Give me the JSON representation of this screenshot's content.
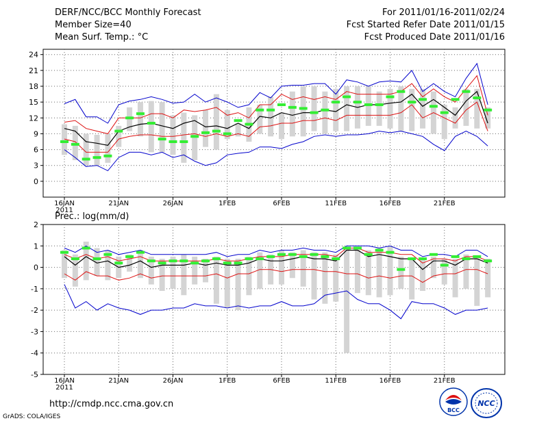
{
  "header": {
    "title": "DERF/NCC/BCC Monthly Forecast",
    "member_size": "Member Size=40",
    "variable": "Mean Surf. Temp.: °C",
    "period": "For 2011/01/16-2011/02/24",
    "start_date": "Fcst Started Refer Date 2011/01/15",
    "produced_date": "Fcst Produced Date 2011/01/16"
  },
  "footer": {
    "url": "http://cmdp.ncc.cma.gov.cn",
    "credit": "GrADS: COLA/IGES",
    "logo1_text": "BCC",
    "logo2_text": "NCC"
  },
  "colors": {
    "ensemble_mean": "#000000",
    "spread": "#dd1111",
    "extremes": "#0000cc",
    "observed": "#33ee33",
    "range_bar": "#d4d4d4",
    "grid": "#666666"
  },
  "chart_data": [
    {
      "type": "line",
      "title": "Mean Surf. Temp.: °C",
      "ylim": [
        -3,
        25
      ],
      "yticks": [
        0,
        3,
        6,
        9,
        12,
        15,
        18,
        21,
        24
      ],
      "xtick_days": [
        1,
        6,
        11,
        16,
        21,
        26,
        31,
        36
      ],
      "xtick_labels": [
        "16JAN",
        "21JAN",
        "26JAN",
        "1FEB",
        "6FEB",
        "11FEB",
        "16FEB",
        "21FEB"
      ],
      "xtick_sublabel": "2011",
      "days": [
        1,
        2,
        3,
        4,
        5,
        6,
        7,
        8,
        9,
        10,
        11,
        12,
        13,
        14,
        15,
        16,
        17,
        18,
        19,
        20,
        21,
        22,
        23,
        24,
        25,
        26,
        27,
        28,
        29,
        30,
        31,
        32,
        33,
        34,
        35,
        36,
        37,
        38,
        39,
        40
      ],
      "series": [
        {
          "name": "ensemble_max",
          "values": [
            14.7,
            15.5,
            12.2,
            12.2,
            11.0,
            14.5,
            15.2,
            15.5,
            16.0,
            15.5,
            14.8,
            15.0,
            16.5,
            15.0,
            15.8,
            15.0,
            14.0,
            14.5,
            16.8,
            15.8,
            18.0,
            18.2,
            18.2,
            18.5,
            18.5,
            16.5,
            19.2,
            18.8,
            18.0,
            18.8,
            19.0,
            18.8,
            21.0,
            17.0,
            18.5,
            17.0,
            16.0,
            19.5,
            22.3,
            14.5
          ]
        },
        {
          "name": "spread_upper",
          "values": [
            11.2,
            11.5,
            10.0,
            9.5,
            9.0,
            12.0,
            12.0,
            12.0,
            12.8,
            12.8,
            12.0,
            13.5,
            13.2,
            13.5,
            14.0,
            12.5,
            13.0,
            12.0,
            14.5,
            14.5,
            16.5,
            15.5,
            16.0,
            15.5,
            16.0,
            15.5,
            17.0,
            16.5,
            16.5,
            16.5,
            16.5,
            17.0,
            18.5,
            16.0,
            17.5,
            16.0,
            15.0,
            17.5,
            20.0,
            12.5
          ]
        },
        {
          "name": "ensemble_mean",
          "values": [
            10.0,
            9.5,
            7.5,
            7.2,
            6.8,
            9.5,
            10.3,
            10.8,
            11.0,
            10.5,
            10.0,
            11.0,
            11.5,
            10.3,
            10.5,
            10.0,
            11.0,
            10.0,
            12.3,
            12.0,
            13.0,
            12.5,
            13.0,
            13.0,
            13.5,
            13.2,
            14.5,
            14.0,
            14.5,
            14.5,
            14.8,
            15.0,
            16.5,
            14.2,
            15.5,
            14.0,
            12.5,
            15.2,
            17.0,
            11.0
          ]
        },
        {
          "name": "spread_lower",
          "values": [
            8.0,
            7.5,
            5.5,
            5.5,
            5.5,
            8.0,
            8.5,
            8.8,
            8.8,
            8.5,
            8.5,
            8.8,
            9.0,
            8.5,
            9.0,
            8.5,
            9.0,
            8.5,
            10.3,
            10.5,
            11.0,
            11.0,
            11.5,
            11.5,
            12.0,
            11.5,
            12.5,
            12.5,
            12.5,
            12.5,
            12.5,
            13.0,
            14.5,
            12.0,
            13.0,
            12.0,
            11.0,
            13.5,
            15.0,
            9.5
          ]
        },
        {
          "name": "ensemble_min",
          "values": [
            6.0,
            4.5,
            2.8,
            3.0,
            2.0,
            4.5,
            5.5,
            5.5,
            5.0,
            5.5,
            4.5,
            5.0,
            3.8,
            3.0,
            3.5,
            5.0,
            5.3,
            5.5,
            6.5,
            6.5,
            6.2,
            7.0,
            7.5,
            8.5,
            8.8,
            8.5,
            8.8,
            8.8,
            9.0,
            9.5,
            9.2,
            9.5,
            9.0,
            8.5,
            7.0,
            5.8,
            8.5,
            9.5,
            8.5,
            6.7
          ]
        },
        {
          "name": "bar_top",
          "values": [
            10.8,
            10.5,
            9.0,
            8.8,
            9.0,
            10.5,
            14.0,
            15.0,
            15.2,
            15.0,
            12.5,
            13.0,
            12.5,
            13.5,
            16.5,
            13.5,
            11.0,
            14.0,
            14.5,
            16.0,
            13.0,
            17.0,
            18.0,
            18.0,
            17.0,
            17.5,
            18.0,
            18.0,
            18.0,
            17.0,
            17.5,
            18.0,
            17.5,
            17.5,
            17.0,
            14.5,
            14.0,
            17.5,
            17.5,
            14.0
          ]
        },
        {
          "name": "bar_bottom",
          "values": [
            5.0,
            4.0,
            3.0,
            3.0,
            3.5,
            6.5,
            9.5,
            8.5,
            5.5,
            5.5,
            5.0,
            3.5,
            4.0,
            6.5,
            6.0,
            8.0,
            8.5,
            7.5,
            9.0,
            8.5,
            8.0,
            8.5,
            8.5,
            9.5,
            9.0,
            9.5,
            9.5,
            10.0,
            10.5,
            10.5,
            10.0,
            9.5,
            9.5,
            10.0,
            9.0,
            8.0,
            10.0,
            10.5,
            10.0,
            10.0
          ]
        },
        {
          "name": "observed",
          "values": [
            7.5,
            7.0,
            4.2,
            4.5,
            4.8,
            9.5,
            12.0,
            12.8,
            11.0,
            8.0,
            7.5,
            7.5,
            8.5,
            9.2,
            9.5,
            9.0,
            11.5,
            10.8,
            13.5,
            13.5,
            14.5,
            14.0,
            13.8,
            13.0,
            13.5,
            15.0,
            16.0,
            15.0,
            14.5,
            14.5,
            16.0,
            17.0,
            15.0,
            15.5,
            14.2,
            13.0,
            15.5,
            17.0,
            15.8,
            13.5
          ]
        }
      ]
    },
    {
      "type": "line",
      "title": "Prec.: log(mm/d)",
      "ylim": [
        -5,
        2
      ],
      "yticks": [
        -5,
        -4,
        -3,
        -2,
        -1,
        0,
        1,
        2
      ],
      "xtick_days": [
        1,
        6,
        11,
        16,
        21,
        26,
        31,
        36
      ],
      "xtick_labels": [
        "16JAN",
        "21JAN",
        "26JAN",
        "1FEB",
        "6FEB",
        "11FEB",
        "16FEB",
        "21FEB"
      ],
      "xtick_sublabel": "2011",
      "days": [
        1,
        2,
        3,
        4,
        5,
        6,
        7,
        8,
        9,
        10,
        11,
        12,
        13,
        14,
        15,
        16,
        17,
        18,
        19,
        20,
        21,
        22,
        23,
        24,
        25,
        26,
        27,
        28,
        29,
        30,
        31,
        32,
        33,
        34,
        35,
        36,
        37,
        38,
        39,
        40
      ],
      "series": [
        {
          "name": "ensemble_max",
          "values": [
            0.9,
            0.7,
            1.0,
            0.7,
            0.8,
            0.6,
            0.7,
            0.8,
            0.6,
            0.6,
            0.6,
            0.6,
            0.6,
            0.6,
            0.7,
            0.5,
            0.6,
            0.6,
            0.8,
            0.7,
            0.8,
            0.8,
            0.9,
            0.8,
            0.8,
            0.7,
            1.0,
            1.0,
            1.0,
            0.9,
            1.0,
            0.8,
            0.8,
            0.5,
            0.6,
            0.6,
            0.5,
            0.8,
            0.8,
            0.5
          ]
        },
        {
          "name": "spread_upper",
          "values": [
            0.6,
            0.4,
            0.6,
            0.4,
            0.5,
            0.3,
            0.4,
            0.5,
            0.3,
            0.3,
            0.3,
            0.3,
            0.3,
            0.3,
            0.4,
            0.3,
            0.3,
            0.4,
            0.5,
            0.5,
            0.5,
            0.6,
            0.6,
            0.6,
            0.6,
            0.5,
            0.9,
            0.9,
            0.7,
            0.7,
            0.7,
            0.6,
            0.6,
            0.2,
            0.4,
            0.4,
            0.3,
            0.5,
            0.5,
            0.3
          ]
        },
        {
          "name": "ensemble_mean",
          "values": [
            0.5,
            0.1,
            0.5,
            0.2,
            0.3,
            0.0,
            0.1,
            0.3,
            0.0,
            0.1,
            0.1,
            0.1,
            0.2,
            0.1,
            0.2,
            0.1,
            0.1,
            0.2,
            0.4,
            0.3,
            0.3,
            0.4,
            0.5,
            0.4,
            0.4,
            0.3,
            0.8,
            0.8,
            0.5,
            0.6,
            0.5,
            0.4,
            0.4,
            -0.1,
            0.3,
            0.3,
            0.1,
            0.4,
            0.4,
            0.2
          ]
        },
        {
          "name": "spread_lower",
          "values": [
            -0.3,
            -0.6,
            -0.2,
            -0.4,
            -0.4,
            -0.6,
            -0.5,
            -0.3,
            -0.5,
            -0.4,
            -0.4,
            -0.4,
            -0.4,
            -0.4,
            -0.3,
            -0.5,
            -0.3,
            -0.3,
            -0.1,
            -0.1,
            -0.2,
            -0.1,
            -0.1,
            -0.1,
            -0.2,
            -0.2,
            -0.3,
            -0.3,
            -0.5,
            -0.4,
            -0.5,
            -0.4,
            -0.4,
            -0.7,
            -0.4,
            -0.3,
            -0.3,
            -0.1,
            -0.1,
            -0.3
          ]
        },
        {
          "name": "ensemble_min",
          "values": [
            -0.8,
            -1.9,
            -1.6,
            -2.0,
            -1.7,
            -1.9,
            -2.0,
            -2.2,
            -2.0,
            -2.0,
            -1.9,
            -1.9,
            -1.7,
            -1.8,
            -1.8,
            -1.9,
            -1.8,
            -1.9,
            -1.8,
            -1.8,
            -1.6,
            -1.8,
            -1.8,
            -1.7,
            -1.3,
            -1.2,
            -1.1,
            -1.5,
            -1.7,
            -1.7,
            -2.0,
            -2.4,
            -1.6,
            -1.7,
            -1.7,
            -1.9,
            -2.2,
            -2.0,
            -2.0,
            -1.9
          ]
        },
        {
          "name": "bar_top",
          "values": [
            0.8,
            0.6,
            1.2,
            0.9,
            0.8,
            0.5,
            0.6,
            0.8,
            0.5,
            0.4,
            0.5,
            0.6,
            0.5,
            0.4,
            0.5,
            0.4,
            0.4,
            0.5,
            0.7,
            0.6,
            0.8,
            0.7,
            0.8,
            0.7,
            0.7,
            0.6,
            0.9,
            0.9,
            0.8,
            0.9,
            1.0,
            0.5,
            0.4,
            0.4,
            0.5,
            0.4,
            0.4,
            0.6,
            0.5,
            0.4
          ]
        },
        {
          "name": "bar_bottom",
          "values": [
            -0.5,
            -0.9,
            -0.6,
            -0.4,
            -0.6,
            -0.5,
            -0.2,
            -0.5,
            -0.8,
            -1.1,
            -1.0,
            -1.3,
            -0.8,
            -0.7,
            -1.7,
            -1.9,
            -2.0,
            -1.3,
            -1.0,
            -0.8,
            -0.8,
            -0.5,
            -0.9,
            -1.5,
            -1.7,
            -1.6,
            -4.0,
            -1.2,
            -1.3,
            -1.4,
            -1.3,
            -1.0,
            -1.5,
            -1.1,
            -0.5,
            -0.8,
            -1.4,
            -1.0,
            -1.8,
            -1.4
          ]
        },
        {
          "name": "observed",
          "values": [
            0.7,
            0.4,
            0.9,
            0.4,
            0.6,
            0.2,
            0.5,
            0.7,
            0.3,
            0.2,
            0.3,
            0.3,
            0.2,
            0.3,
            0.4,
            0.2,
            0.2,
            0.4,
            0.4,
            0.5,
            0.6,
            0.6,
            0.5,
            0.6,
            0.5,
            0.4,
            0.9,
            0.9,
            0.6,
            0.8,
            0.7,
            -0.1,
            0.4,
            0.4,
            0.6,
            0.1,
            0.5,
            0.4,
            0.5,
            0.3
          ]
        }
      ]
    }
  ]
}
